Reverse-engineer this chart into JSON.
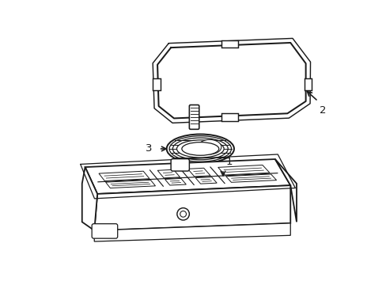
{
  "background_color": "#ffffff",
  "line_color": "#1a1a1a",
  "line_width": 1.3,
  "label_fontsize": 9.5,
  "figsize": [
    4.89,
    3.6
  ],
  "dpi": 100
}
